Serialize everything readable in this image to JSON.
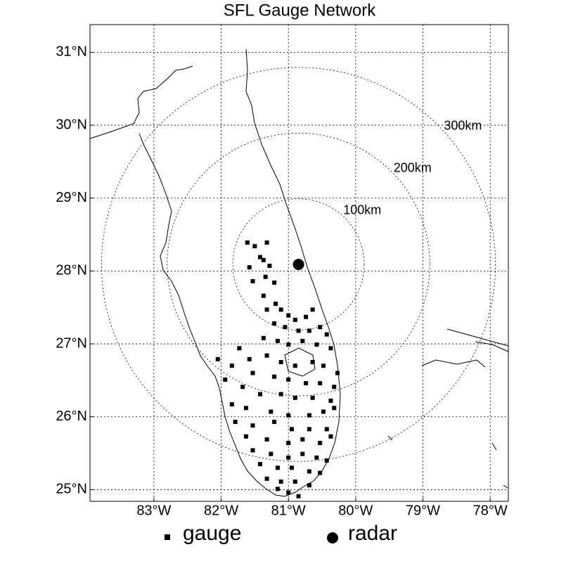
{
  "chart_data": {
    "type": "scatter",
    "title": "SFL Gauge Network",
    "xlim": [
      -83.95,
      -77.73
    ],
    "ylim": [
      24.84,
      31.38
    ],
    "xticks": [
      {
        "value": -83,
        "label": "83°W"
      },
      {
        "value": -82,
        "label": "82°W"
      },
      {
        "value": -81,
        "label": "81°W"
      },
      {
        "value": -80,
        "label": "80°W"
      },
      {
        "value": -79,
        "label": "79°W"
      },
      {
        "value": -78,
        "label": "78°W"
      }
    ],
    "yticks": [
      {
        "value": 25,
        "label": "25°N"
      },
      {
        "value": 26,
        "label": "26°N"
      },
      {
        "value": 27,
        "label": "27°N"
      },
      {
        "value": 28,
        "label": "28°N"
      },
      {
        "value": 29,
        "label": "29°N"
      },
      {
        "value": 30,
        "label": "30°N"
      },
      {
        "value": 31,
        "label": "31°N"
      }
    ],
    "grid": true,
    "rings": {
      "values": [
        100,
        200,
        300
      ],
      "value_labels": [
        "100km",
        "200km",
        "300km"
      ]
    },
    "series": [
      {
        "name": "gauge",
        "marker": "square",
        "color": "#000000",
        "x": [
          -81.61,
          -81.5,
          -81.32,
          -81.42,
          -81.58,
          -81.37,
          -81.28,
          -81.53,
          -81.34,
          -81.21,
          -81.37,
          -81.19,
          -81.32,
          -81.11,
          -81.0,
          -80.9,
          -80.74,
          -80.64,
          -81.21,
          -81.05,
          -80.85,
          -80.69,
          -80.53,
          -80.43,
          -81.37,
          -81.16,
          -81.0,
          -80.79,
          -80.58,
          -80.37,
          -81.73,
          -81.58,
          -81.32,
          -81.11,
          -80.9,
          -80.64,
          -80.48,
          -80.27,
          -82.05,
          -81.84,
          -81.53,
          -81.21,
          -81.0,
          -80.74,
          -80.53,
          -80.32,
          -81.94,
          -81.68,
          -81.42,
          -81.11,
          -80.9,
          -80.64,
          -80.37,
          -81.84,
          -81.63,
          -81.26,
          -81.0,
          -80.69,
          -80.48,
          -80.32,
          -81.79,
          -81.53,
          -81.21,
          -80.95,
          -80.69,
          -80.43,
          -81.63,
          -81.32,
          -81.0,
          -80.79,
          -80.53,
          -80.37,
          -81.53,
          -81.26,
          -81.0,
          -80.79,
          -80.58,
          -80.43,
          -81.42,
          -81.16,
          -80.95,
          -80.69,
          -80.53,
          -81.32,
          -81.11,
          -80.9,
          -80.69,
          -81.0,
          -80.85,
          -81.16
        ],
        "y": [
          28.39,
          28.34,
          28.39,
          28.19,
          28.05,
          28.15,
          28.07,
          27.86,
          27.92,
          27.84,
          27.66,
          27.55,
          27.47,
          27.47,
          27.39,
          27.33,
          27.37,
          27.47,
          27.28,
          27.23,
          27.18,
          27.18,
          27.23,
          27.13,
          27.08,
          27.04,
          26.99,
          27.04,
          26.99,
          26.94,
          26.94,
          26.79,
          26.84,
          26.75,
          26.7,
          26.75,
          26.7,
          26.6,
          26.79,
          26.7,
          26.6,
          26.55,
          26.51,
          26.46,
          26.46,
          26.41,
          26.51,
          26.41,
          26.31,
          26.31,
          26.26,
          26.26,
          26.22,
          26.17,
          26.12,
          26.07,
          26.02,
          26.02,
          26.07,
          26.12,
          25.93,
          25.88,
          25.93,
          25.83,
          25.83,
          25.83,
          25.73,
          25.69,
          25.64,
          25.69,
          25.64,
          25.73,
          25.54,
          25.49,
          25.44,
          25.49,
          25.44,
          25.4,
          25.35,
          25.3,
          25.3,
          25.25,
          25.23,
          25.15,
          25.11,
          25.11,
          25.06,
          24.96,
          24.91,
          25.01
        ]
      },
      {
        "name": "radar",
        "marker": "circle",
        "color": "#000000",
        "x": [
          -80.85
        ],
        "y": [
          28.09
        ]
      }
    ]
  }
}
